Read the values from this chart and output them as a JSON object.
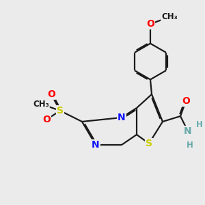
{
  "bg_color": "#ebebeb",
  "bond_color": "#1a1a1a",
  "bond_width": 1.6,
  "dbo": 0.055,
  "atom_colors": {
    "N": "#1010ff",
    "S": "#cccc00",
    "O": "#ff0000",
    "C": "#1a1a1a",
    "H": "#66aaaa"
  },
  "fs": 10,
  "fs_small": 8.5
}
